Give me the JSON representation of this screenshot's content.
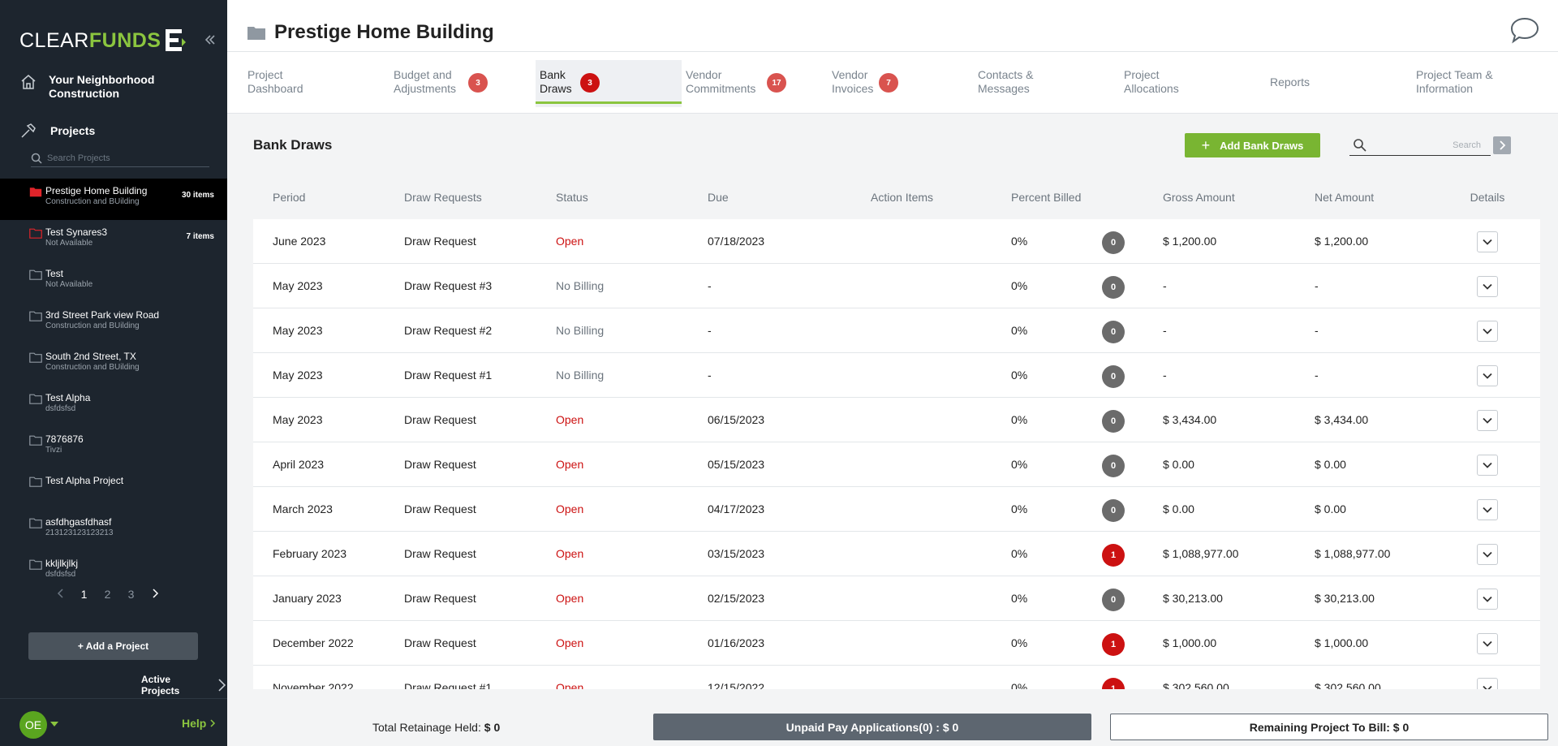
{
  "brand": {
    "clear": "CLEAR",
    "funds": "FUNDS",
    "accent": "#8bc53f"
  },
  "sidebar": {
    "company": "Your Neighborhood Construction",
    "projects_label": "Projects",
    "search_placeholder": "Search Projects",
    "projects": [
      {
        "name": "Prestige Home Building",
        "sub": "Construction and BUilding",
        "count": "30 items",
        "active": true
      },
      {
        "name": "Test Synares3",
        "sub": "Not Available",
        "count": "7 items",
        "active": false
      },
      {
        "name": "Test",
        "sub": "Not Available",
        "count": "",
        "active": false
      },
      {
        "name": "3rd Street Park view Road",
        "sub": "Construction and BUilding",
        "count": "",
        "active": false
      },
      {
        "name": "South 2nd Street, TX",
        "sub": "Construction and BUilding",
        "count": "",
        "active": false
      },
      {
        "name": "Test Alpha",
        "sub": "dsfdsfsd",
        "count": "",
        "active": false
      },
      {
        "name": "7876876",
        "sub": "Tivzi",
        "count": "",
        "active": false
      },
      {
        "name": "Test Alpha Project",
        "sub": "",
        "count": "",
        "active": false
      },
      {
        "name": "asfdhgasfdhasf",
        "sub": "213123123123213",
        "count": "",
        "active": false
      },
      {
        "name": "kkljlkjlkj",
        "sub": "dsfdsfsd",
        "count": "",
        "active": false
      }
    ],
    "pages": [
      "1",
      "2",
      "3"
    ],
    "add_project": "+ Add a Project",
    "active_projects": "Active Projects",
    "avatar": "OE",
    "help": "Help"
  },
  "header": {
    "title": "Prestige Home Building"
  },
  "tabs": [
    {
      "label": "Project Dashboard",
      "badge": ""
    },
    {
      "label": "Budget and Adjustments",
      "badge": "3"
    },
    {
      "label": "Bank Draws",
      "badge": "3"
    },
    {
      "label": "Vendor Commitments",
      "badge": "17"
    },
    {
      "label": "Vendor Invoices",
      "badge": "7"
    },
    {
      "label": "Contacts & Messages",
      "badge": ""
    },
    {
      "label": "Project Allocations",
      "badge": ""
    },
    {
      "label": "Reports",
      "badge": ""
    },
    {
      "label": "Project Team & Information",
      "badge": ""
    }
  ],
  "active_tab": 2,
  "content": {
    "title": "Bank Draws",
    "add_button": "Add Bank Draws",
    "search_placeholder": "Search",
    "columns": [
      "Period",
      "Draw Requests",
      "Status",
      "Due",
      "Action Items",
      "Percent Billed",
      "Gross Amount",
      "Net Amount",
      "Details"
    ],
    "rows": [
      {
        "period": "June 2023",
        "request": "Draw Request",
        "status": "Open",
        "due": "07/18/2023",
        "actions": "0",
        "percent": "0%",
        "gross": "$ 1,200.00",
        "net": "$ 1,200.00"
      },
      {
        "period": "May 2023",
        "request": "Draw Request #3",
        "status": "No Billing",
        "due": "-",
        "actions": "0",
        "percent": "0%",
        "gross": "-",
        "net": "-"
      },
      {
        "period": "May 2023",
        "request": "Draw Request #2",
        "status": "No Billing",
        "due": "-",
        "actions": "0",
        "percent": "0%",
        "gross": "-",
        "net": "-"
      },
      {
        "period": "May 2023",
        "request": "Draw Request #1",
        "status": "No Billing",
        "due": "-",
        "actions": "0",
        "percent": "0%",
        "gross": "-",
        "net": "-"
      },
      {
        "period": "May 2023",
        "request": "Draw Request",
        "status": "Open",
        "due": "06/15/2023",
        "actions": "0",
        "percent": "0%",
        "gross": "$ 3,434.00",
        "net": "$ 3,434.00"
      },
      {
        "period": "April 2023",
        "request": "Draw Request",
        "status": "Open",
        "due": "05/15/2023",
        "actions": "0",
        "percent": "0%",
        "gross": "$ 0.00",
        "net": "$ 0.00"
      },
      {
        "period": "March 2023",
        "request": "Draw Request",
        "status": "Open",
        "due": "04/17/2023",
        "actions": "0",
        "percent": "0%",
        "gross": "$ 0.00",
        "net": "$ 0.00"
      },
      {
        "period": "February 2023",
        "request": "Draw Request",
        "status": "Open",
        "due": "03/15/2023",
        "actions": "1",
        "percent": "0%",
        "gross": "$ 1,088,977.00",
        "net": "$ 1,088,977.00"
      },
      {
        "period": "January 2023",
        "request": "Draw Request",
        "status": "Open",
        "due": "02/15/2023",
        "actions": "0",
        "percent": "0%",
        "gross": "$ 30,213.00",
        "net": "$ 30,213.00"
      },
      {
        "period": "December 2022",
        "request": "Draw Request",
        "status": "Open",
        "due": "01/16/2023",
        "actions": "1",
        "percent": "0%",
        "gross": "$ 1,000.00",
        "net": "$ 1,000.00"
      },
      {
        "period": "November 2022",
        "request": "Draw Request #1",
        "status": "Open",
        "due": "12/15/2022",
        "actions": "1",
        "percent": "0%",
        "gross": "$ 302,560.00",
        "net": "$ 302,560.00"
      }
    ]
  },
  "footer": {
    "retainage_label": "Total Retainage Held:",
    "retainage_value": "$ 0",
    "unpaid": "Unpaid Pay Applications(0) : $ 0",
    "remaining": "Remaining Project To Bill: $ 0"
  },
  "colors": {
    "open": "#cc1111",
    "badge_red": "#d9534f",
    "green_button": "#79b532",
    "sidebar_bg": "#1d252e"
  }
}
